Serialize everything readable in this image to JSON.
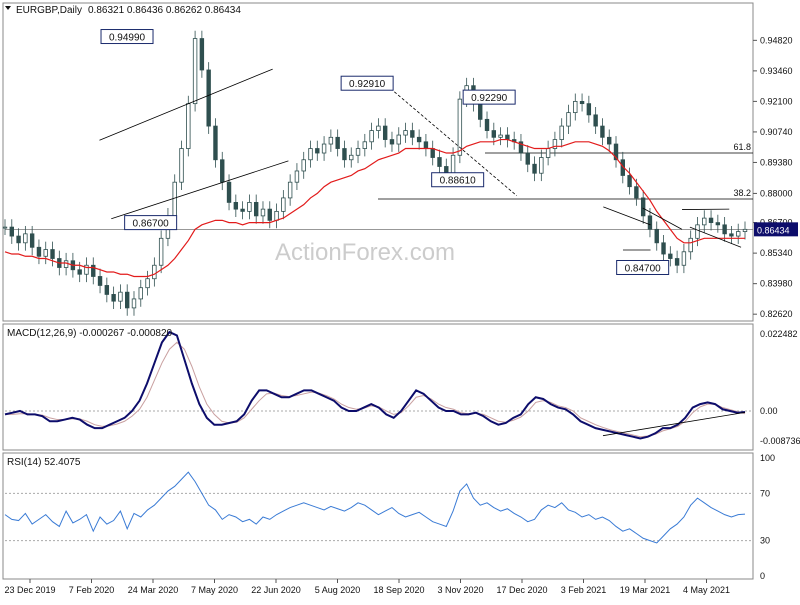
{
  "header": {
    "symbol": "EURGBP,Daily",
    "ohlc": "0.86321 0.86436 0.86262 0.86434"
  },
  "watermark": "ActionForex.com",
  "colors": {
    "candle": "#2f4f4f",
    "ma": "#e21b1b",
    "macd": "#0d0d6b",
    "signal": "#c9a0a0",
    "rsi": "#3a7bd5",
    "price_box": "#0d0d6b"
  },
  "chart_data": [
    {
      "type": "candlestick",
      "name": "price",
      "ylim": [
        0.8245,
        0.9635
      ],
      "y_ticks": [
        "0.94820",
        "0.93460",
        "0.92100",
        "0.90740",
        "0.89380",
        "0.88000",
        "0.86700",
        "0.85340",
        "0.83980",
        "0.82620"
      ],
      "current_price": "0.86434",
      "series": [
        {
          "name": "close",
          "values": [
            0.865,
            0.861,
            0.858,
            0.862,
            0.856,
            0.852,
            0.855,
            0.851,
            0.847,
            0.85,
            0.846,
            0.844,
            0.848,
            0.843,
            0.839,
            0.835,
            0.832,
            0.836,
            0.829,
            0.833,
            0.838,
            0.842,
            0.848,
            0.86,
            0.87,
            0.885,
            0.9,
            0.92,
            0.949,
            0.935,
            0.91,
            0.895,
            0.885,
            0.876,
            0.873,
            0.872,
            0.876,
            0.87,
            0.873,
            0.868,
            0.872,
            0.878,
            0.885,
            0.89,
            0.895,
            0.9,
            0.898,
            0.902,
            0.905,
            0.9,
            0.895,
            0.897,
            0.9,
            0.903,
            0.908,
            0.91,
            0.904,
            0.902,
            0.906,
            0.908,
            0.905,
            0.903,
            0.9,
            0.896,
            0.892,
            0.889,
            0.897,
            0.922,
            0.928,
            0.92,
            0.913,
            0.908,
            0.905,
            0.906,
            0.904,
            0.903,
            0.898,
            0.893,
            0.889,
            0.896,
            0.9,
            0.904,
            0.91,
            0.916,
            0.921,
            0.92,
            0.915,
            0.91,
            0.905,
            0.902,
            0.895,
            0.888,
            0.883,
            0.878,
            0.87,
            0.864,
            0.858,
            0.853,
            0.851,
            0.848,
            0.854,
            0.86,
            0.866,
            0.869,
            0.867,
            0.866,
            0.862,
            0.861,
            0.863,
            0.864
          ]
        },
        {
          "name": "SMA (red line)",
          "values": [
            0.854,
            0.853,
            0.853,
            0.852,
            0.852,
            0.851,
            0.851,
            0.85,
            0.849,
            0.849,
            0.848,
            0.848,
            0.847,
            0.847,
            0.846,
            0.845,
            0.845,
            0.844,
            0.844,
            0.843,
            0.843,
            0.843,
            0.844,
            0.846,
            0.848,
            0.851,
            0.855,
            0.859,
            0.864,
            0.866,
            0.867,
            0.868,
            0.868,
            0.867,
            0.867,
            0.866,
            0.867,
            0.867,
            0.867,
            0.867,
            0.868,
            0.869,
            0.871,
            0.873,
            0.875,
            0.878,
            0.88,
            0.883,
            0.885,
            0.886,
            0.887,
            0.888,
            0.89,
            0.891,
            0.893,
            0.895,
            0.896,
            0.897,
            0.898,
            0.9,
            0.9,
            0.9,
            0.9,
            0.9,
            0.899,
            0.898,
            0.898,
            0.899,
            0.901,
            0.902,
            0.903,
            0.903,
            0.903,
            0.904,
            0.904,
            0.903,
            0.902,
            0.901,
            0.9,
            0.9,
            0.9,
            0.901,
            0.901,
            0.902,
            0.903,
            0.903,
            0.903,
            0.902,
            0.901,
            0.899,
            0.896,
            0.892,
            0.889,
            0.885,
            0.881,
            0.877,
            0.872,
            0.868,
            0.864,
            0.86,
            0.858,
            0.858,
            0.859,
            0.86,
            0.86,
            0.86,
            0.86,
            0.86,
            0.86,
            0.86
          ]
        }
      ],
      "annotations": [
        {
          "label": "0.94990",
          "x": 31,
          "price": 0.9499
        },
        {
          "label": "0.92910",
          "x": 92,
          "price": 0.9291
        },
        {
          "label": "0.86700",
          "x": 37,
          "price": 0.867
        },
        {
          "label": "0.88610",
          "x": 115,
          "price": 0.8861
        },
        {
          "label": "0.92290",
          "x": 123,
          "price": 0.9229
        },
        {
          "label": "0.84700",
          "x": 162,
          "price": 0.847
        }
      ],
      "fib_levels": [
        {
          "label": "61.8",
          "price": 0.898
        },
        {
          "label": "38.2",
          "price": 0.8775
        }
      ]
    },
    {
      "type": "line",
      "name": "MACD(12,26,9) -0.000267 -0.000820",
      "ylim": [
        -0.0105,
        0.0236
      ],
      "y_ticks": [
        "0.022482",
        "0.00",
        "-0.008736"
      ],
      "series": [
        {
          "name": "MACD",
          "values": [
            -0.001,
            -0.0005,
            0.0,
            -0.001,
            -0.001,
            -0.0015,
            -0.003,
            -0.003,
            -0.0025,
            -0.002,
            -0.0025,
            -0.004,
            -0.005,
            -0.005,
            -0.004,
            -0.003,
            -0.002,
            0.0,
            0.003,
            0.008,
            0.014,
            0.02,
            0.023,
            0.022,
            0.015,
            0.008,
            0.002,
            -0.002,
            -0.004,
            -0.004,
            -0.0035,
            -0.003,
            -0.001,
            0.003,
            0.006,
            0.006,
            0.005,
            0.004,
            0.004,
            0.005,
            0.006,
            0.006,
            0.005,
            0.004,
            0.003,
            0.001,
            0.0,
            0.0,
            0.001,
            0.002,
            0.001,
            -0.001,
            -0.002,
            0.0,
            0.003,
            0.006,
            0.005,
            0.003,
            0.001,
            0.0,
            0.0,
            -0.001,
            -0.001,
            -0.0005,
            -0.0015,
            -0.003,
            -0.004,
            -0.0035,
            -0.002,
            -0.001,
            0.002,
            0.004,
            0.0035,
            0.002,
            0.001,
            0.0005,
            -0.001,
            -0.003,
            -0.004,
            -0.005,
            -0.0055,
            -0.006,
            -0.0065,
            -0.007,
            -0.0075,
            -0.008,
            -0.0075,
            -0.0065,
            -0.005,
            -0.005,
            -0.004,
            -0.002,
            0.001,
            0.002,
            0.0025,
            0.002,
            0.0005,
            0.0,
            -0.0005,
            -0.0003
          ]
        },
        {
          "name": "Signal",
          "values": [
            -0.001,
            -0.001,
            -0.0008,
            -0.0008,
            -0.001,
            -0.0012,
            -0.002,
            -0.0025,
            -0.0025,
            -0.0023,
            -0.0023,
            -0.003,
            -0.004,
            -0.0045,
            -0.0043,
            -0.0038,
            -0.003,
            -0.0015,
            0.0005,
            0.004,
            0.009,
            0.014,
            0.018,
            0.02,
            0.018,
            0.013,
            0.007,
            0.002,
            -0.001,
            -0.003,
            -0.0035,
            -0.0033,
            -0.002,
            0.0005,
            0.003,
            0.005,
            0.0052,
            0.0045,
            0.0042,
            0.0045,
            0.005,
            0.0055,
            0.0052,
            0.0045,
            0.0035,
            0.002,
            0.001,
            0.0005,
            0.0008,
            0.0015,
            0.0012,
            0.0,
            -0.001,
            -0.0005,
            0.0015,
            0.004,
            0.0045,
            0.0035,
            0.002,
            0.001,
            0.0005,
            -0.0005,
            -0.0008,
            -0.0007,
            -0.001,
            -0.002,
            -0.003,
            -0.0033,
            -0.0027,
            -0.0018,
            0.0,
            0.0025,
            0.003,
            0.0025,
            0.0015,
            0.001,
            0.0,
            -0.002,
            -0.003,
            -0.004,
            -0.0048,
            -0.0055,
            -0.006,
            -0.0065,
            -0.007,
            -0.0075,
            -0.0073,
            -0.0068,
            -0.0058,
            -0.0052,
            -0.0045,
            -0.003,
            -0.0005,
            0.0012,
            0.002,
            0.002,
            0.001,
            0.0004,
            -0.0002,
            -0.0008
          ]
        }
      ]
    },
    {
      "type": "line",
      "name": "RSI(14) 52.4075",
      "ylim": [
        0,
        100
      ],
      "y_ticks": [
        "100",
        "70",
        "30",
        "0"
      ],
      "series": [
        {
          "name": "RSI",
          "values": [
            52,
            48,
            47,
            53,
            44,
            48,
            52,
            46,
            42,
            55,
            45,
            48,
            52,
            38,
            50,
            44,
            47,
            55,
            40,
            53,
            50,
            56,
            60,
            66,
            72,
            76,
            82,
            88,
            80,
            70,
            60,
            56,
            48,
            52,
            50,
            46,
            48,
            44,
            50,
            48,
            52,
            55,
            58,
            60,
            62,
            60,
            58,
            56,
            59,
            57,
            55,
            58,
            62,
            60,
            56,
            52,
            55,
            58,
            53,
            50,
            52,
            54,
            50,
            46,
            44,
            42,
            55,
            72,
            78,
            66,
            60,
            62,
            58,
            55,
            57,
            53,
            50,
            46,
            48,
            56,
            60,
            58,
            62,
            56,
            54,
            50,
            52,
            48,
            50,
            47,
            42,
            38,
            40,
            36,
            32,
            30,
            28,
            34,
            40,
            44,
            50,
            60,
            66,
            62,
            58,
            55,
            52,
            50,
            52,
            52.4
          ]
        }
      ]
    }
  ],
  "x_axis": {
    "labels": [
      "23 Dec 2019",
      "7 Feb 2020",
      "24 Mar 2020",
      "7 May 2020",
      "22 Jun 2020",
      "5 Aug 2020",
      "18 Sep 2020",
      "3 Nov 2020",
      "17 Dec 2020",
      "3 Feb 2021",
      "19 Mar 2021",
      "4 May 2021"
    ]
  }
}
